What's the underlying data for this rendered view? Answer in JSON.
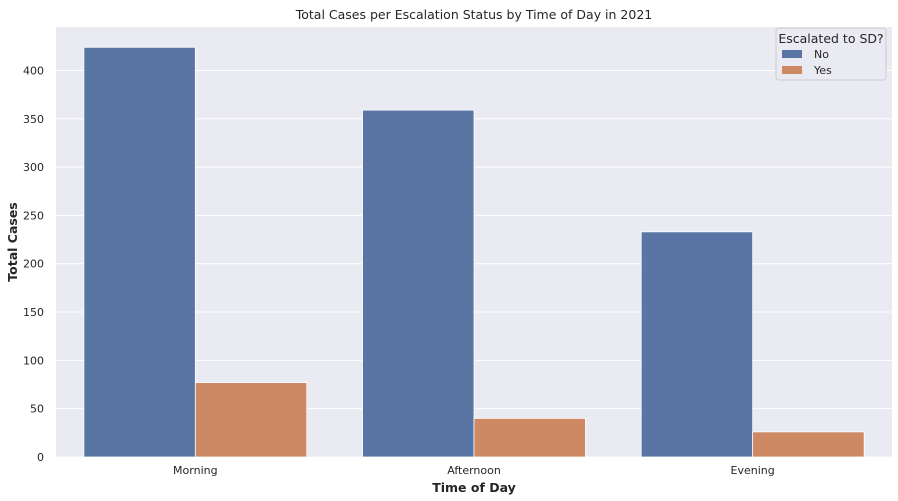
{
  "chart_data": {
    "type": "bar",
    "title": "Total Cases per Escalation Status by Time of Day in 2021",
    "xlabel": "Time of Day",
    "ylabel": "Total Cases",
    "categories": [
      "Morning",
      "Afternoon",
      "Evening"
    ],
    "series": [
      {
        "name": "No",
        "values": [
          424,
          359,
          233
        ],
        "color": "#5875a4"
      },
      {
        "name": "Yes",
        "values": [
          77,
          40,
          26
        ],
        "color": "#cc8963"
      }
    ],
    "ylim": [
      0,
      445
    ],
    "yticks": [
      0,
      50,
      100,
      150,
      200,
      250,
      300,
      350,
      400
    ],
    "grid": true,
    "legend": {
      "title": "Escalated to SD?",
      "placement": "top-right"
    },
    "colors": {
      "background": "#eaeaf2",
      "grid": "#ffffff"
    }
  }
}
